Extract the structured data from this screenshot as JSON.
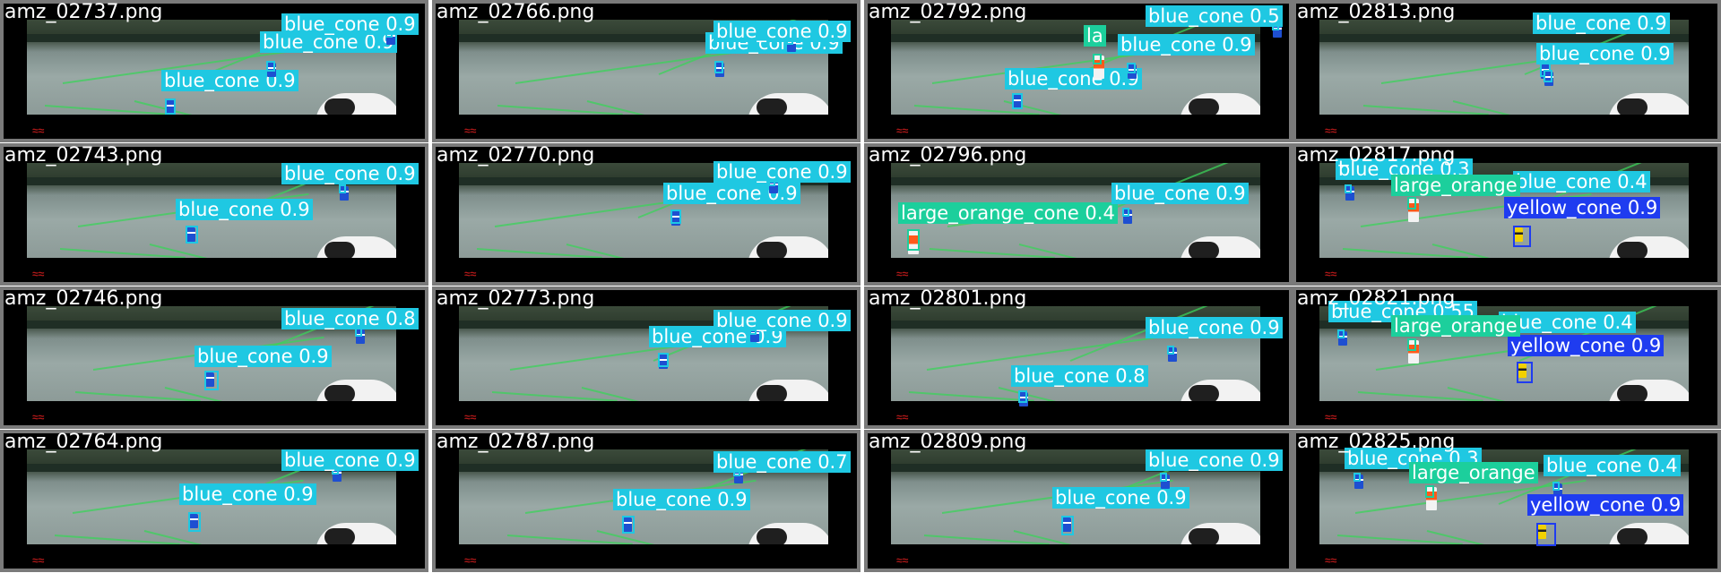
{
  "colors": {
    "blue_cone_label_bg": "#1fc8e2",
    "blue_cone_label_text": "#ffffff",
    "yellow_cone_label_bg": "#1f3cf0",
    "large_orange_label_bg": "#1ccf9c",
    "tile_bg": "#7a7a7a",
    "filename_text": "#ffffff"
  },
  "mosaic": {
    "rows": [
      [
        {
          "filename": "amz_02737.png",
          "detections": [
            {
              "label": "blue_cone 0.9"
            },
            {
              "label": "blue_cone 0.9"
            },
            {
              "label": "blue_cone 0.9"
            }
          ]
        },
        {
          "filename": "amz_02766.png",
          "detections": [
            {
              "label": "blue_cone 0.9"
            },
            {
              "label": "blue_cone 0.9"
            }
          ]
        },
        {
          "filename": "amz_02792.png",
          "detections": [
            {
              "label": "blue_cone 0.9"
            },
            {
              "label": "blue_cone 0.9"
            },
            {
              "label": "blue_cone 0.5"
            },
            {
              "label": "la"
            }
          ]
        },
        {
          "filename": "amz_02813.png",
          "detections": [
            {
              "label": "blue_cone 0.9"
            },
            {
              "label": "blue_cone 0.9"
            }
          ]
        }
      ],
      [
        {
          "filename": "amz_02743.png",
          "detections": [
            {
              "label": "blue_cone 0.9"
            },
            {
              "label": "blue_cone 0.9"
            }
          ]
        },
        {
          "filename": "amz_02770.png",
          "detections": [
            {
              "label": "blue_cone 0.9"
            },
            {
              "label": "blue_cone 0.9"
            }
          ]
        },
        {
          "filename": "amz_02796.png",
          "detections": [
            {
              "label": "large_orange_cone 0.4"
            },
            {
              "label": "blue_cone 0.9"
            }
          ]
        },
        {
          "filename": "amz_02817.png",
          "detections": [
            {
              "label": "blue_cone 0.3"
            },
            {
              "label": "blue_cone 0.4"
            },
            {
              "label": "yellow_cone 0.9"
            },
            {
              "label": "large_orange"
            }
          ]
        }
      ],
      [
        {
          "filename": "amz_02746.png",
          "detections": [
            {
              "label": "blue_cone 0.9"
            },
            {
              "label": "blue_cone 0.8"
            }
          ]
        },
        {
          "filename": "amz_02773.png",
          "detections": [
            {
              "label": "blue_cone 0.9"
            },
            {
              "label": "blue_cone 0.9"
            }
          ]
        },
        {
          "filename": "amz_02801.png",
          "detections": [
            {
              "label": "blue_cone 0.8"
            },
            {
              "label": "blue_cone 0.9"
            }
          ]
        },
        {
          "filename": "amz_02821.png",
          "detections": [
            {
              "label": "blue_cone 0.55"
            },
            {
              "label": "blue_cone 0.4"
            },
            {
              "label": "yellow_cone 0.9"
            },
            {
              "label": "large_orange"
            }
          ]
        }
      ],
      [
        {
          "filename": "amz_02764.png",
          "detections": [
            {
              "label": "blue_cone 0.9"
            },
            {
              "label": "blue_cone 0.9"
            }
          ]
        },
        {
          "filename": "amz_02787.png",
          "detections": [
            {
              "label": "blue_cone 0.9"
            },
            {
              "label": "blue_cone 0.7"
            }
          ]
        },
        {
          "filename": "amz_02809.png",
          "detections": [
            {
              "label": "blue_cone 0.9"
            },
            {
              "label": "blue_cone 0.9"
            }
          ]
        },
        {
          "filename": "amz_02825.png",
          "detections": [
            {
              "label": "blue_cone 0.3"
            },
            {
              "label": "blue_cone 0.4"
            },
            {
              "label": "yellow_cone 0.9"
            },
            {
              "label": "large_orange"
            }
          ]
        }
      ]
    ]
  }
}
